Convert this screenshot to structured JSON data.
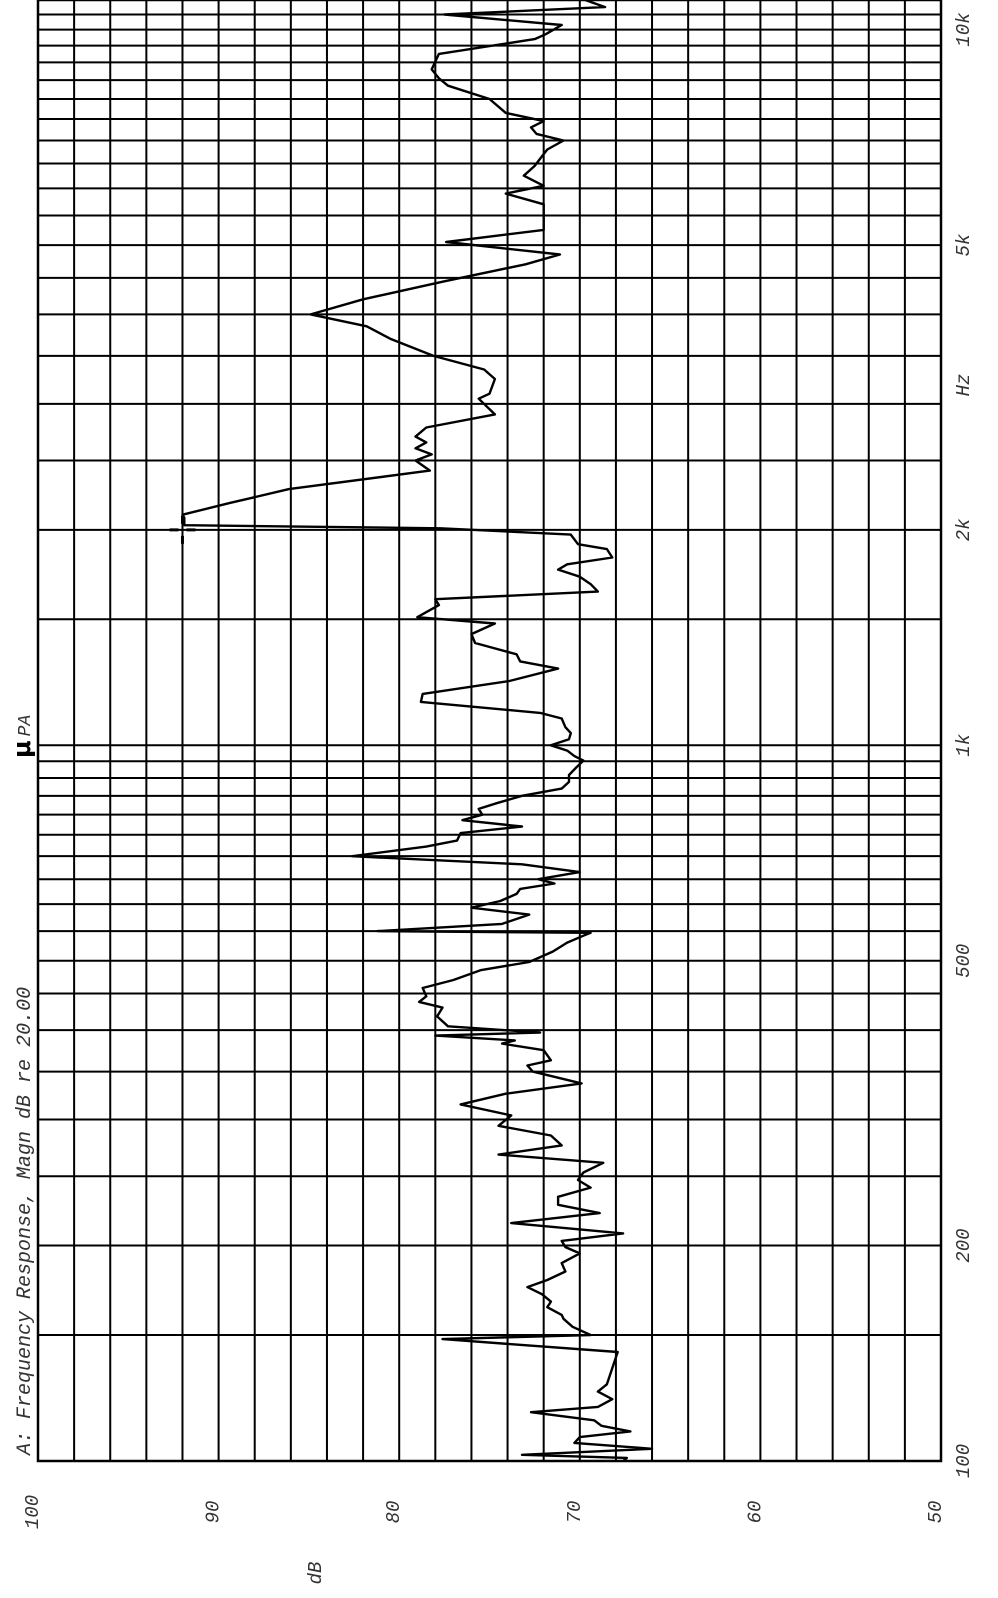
{
  "chart_data": {
    "type": "line",
    "title": "A: Frequency Response, Magn dB re 20.00",
    "title_unit_symbol": "μ",
    "title_unit_suffix": "PA",
    "xlabel": "Hz",
    "ylabel": "dB",
    "x_scale": "log",
    "xlim": [
      100,
      11000
    ],
    "ylim": [
      50,
      100
    ],
    "x_tick_labels": [
      {
        "value": 100,
        "label": "100"
      },
      {
        "value": 200,
        "label": "200"
      },
      {
        "value": 500,
        "label": "500"
      },
      {
        "value": 1000,
        "label": "1k"
      },
      {
        "value": 2000,
        "label": "2k"
      },
      {
        "value": 5000,
        "label": "5k"
      },
      {
        "value": 10000,
        "label": "10k"
      }
    ],
    "y_tick_labels": [
      {
        "value": 100,
        "label": "100"
      },
      {
        "value": 90,
        "label": "90"
      },
      {
        "value": 80,
        "label": "80"
      },
      {
        "value": 70,
        "label": "70"
      },
      {
        "value": 60,
        "label": "60"
      },
      {
        "value": 50,
        "label": "50"
      }
    ],
    "x_gridlines": [
      100,
      150,
      200,
      250,
      300,
      350,
      400,
      450,
      500,
      550,
      600,
      650,
      700,
      750,
      800,
      850,
      900,
      950,
      1000,
      1500,
      2000,
      2500,
      3000,
      3500,
      4000,
      4500,
      5000,
      5500,
      6000,
      6500,
      7000,
      7500,
      8000,
      8500,
      9000,
      9500,
      10000,
      10500,
      11000
    ],
    "y_gridlines": [
      50,
      52,
      54,
      56,
      58,
      60,
      62,
      64,
      66,
      68,
      70,
      72,
      74,
      76,
      78,
      80,
      82,
      84,
      86,
      88,
      90,
      92,
      94,
      96,
      98,
      100
    ],
    "grid": true,
    "marker": {
      "x": 2000,
      "y": 92
    },
    "series": [
      {
        "points": [
          [
            100,
            67.6
          ],
          [
            101,
            67.4
          ],
          [
            102,
            73.2
          ],
          [
            104,
            66.0
          ],
          [
            106,
            70.3
          ],
          [
            108,
            70.0
          ],
          [
            110,
            67.2
          ],
          [
            112,
            68.8
          ],
          [
            114,
            69.2
          ],
          [
            117,
            72.7
          ],
          [
            119,
            69.0
          ],
          [
            122,
            68.2
          ],
          [
            125,
            69.0
          ],
          [
            128,
            68.5
          ],
          [
            142,
            67.9
          ],
          [
            148,
            77.6
          ],
          [
            150,
            69.4
          ],
          [
            154,
            70.4
          ],
          [
            158,
            70.9
          ],
          [
            160,
            71.0
          ],
          [
            164,
            71.8
          ],
          [
            167,
            71.6
          ],
          [
            171,
            72.1
          ],
          [
            175,
            72.9
          ],
          [
            179,
            71.8
          ],
          [
            184,
            70.8
          ],
          [
            189,
            71.0
          ],
          [
            195,
            70.0
          ],
          [
            199,
            70.8
          ],
          [
            203,
            71.0
          ],
          [
            208,
            67.6
          ],
          [
            215,
            73.8
          ],
          [
            222,
            68.9
          ],
          [
            228,
            71.2
          ],
          [
            234,
            71.2
          ],
          [
            241,
            69.4
          ],
          [
            247,
            70.1
          ],
          [
            253,
            69.8
          ],
          [
            261,
            68.7
          ],
          [
            268,
            74.5
          ],
          [
            276,
            71.0
          ],
          [
            285,
            71.6
          ],
          [
            294,
            74.5
          ],
          [
            304,
            73.8
          ],
          [
            315,
            76.6
          ],
          [
            326,
            74.1
          ],
          [
            337,
            69.9
          ],
          [
            350,
            72.6
          ],
          [
            357,
            72.9
          ],
          [
            363,
            71.6
          ],
          [
            375,
            72.0
          ],
          [
            383,
            74.3
          ],
          [
            387,
            73.6
          ],
          [
            393,
            78.0
          ],
          [
            397,
            72.2
          ],
          [
            405,
            77.3
          ],
          [
            418,
            77.9
          ],
          [
            430,
            77.6
          ],
          [
            438,
            78.9
          ],
          [
            446,
            78.5
          ],
          [
            458,
            78.7
          ],
          [
            470,
            77.0
          ],
          [
            485,
            75.5
          ],
          [
            498,
            72.8
          ],
          [
            515,
            71.5
          ],
          [
            530,
            70.7
          ],
          [
            542,
            69.8
          ],
          [
            547,
            69.4
          ],
          [
            550,
            81.2
          ],
          [
            563,
            74.3
          ],
          [
            580,
            72.8
          ],
          [
            593,
            76.0
          ],
          [
            606,
            74.4
          ],
          [
            620,
            73.5
          ],
          [
            630,
            73.3
          ],
          [
            641,
            71.4
          ],
          [
            650,
            72.3
          ],
          [
            665,
            70.0
          ],
          [
            682,
            73.2
          ],
          [
            700,
            82.6
          ],
          [
            722,
            78.5
          ],
          [
            736,
            76.8
          ],
          [
            754,
            76.6
          ],
          [
            770,
            73.2
          ],
          [
            786,
            76.5
          ],
          [
            800,
            75.4
          ],
          [
            815,
            75.6
          ],
          [
            830,
            74.6
          ],
          [
            850,
            73.2
          ],
          [
            870,
            71.0
          ],
          [
            889,
            70.6
          ],
          [
            909,
            70.6
          ],
          [
            931,
            70.2
          ],
          [
            952,
            69.8
          ],
          [
            966,
            70.3
          ],
          [
            983,
            70.7
          ],
          [
            1000,
            71.6
          ],
          [
            1020,
            70.6
          ],
          [
            1040,
            70.5
          ],
          [
            1060,
            70.8
          ],
          [
            1090,
            71.0
          ],
          [
            1110,
            72.2
          ],
          [
            1150,
            78.8
          ],
          [
            1180,
            78.7
          ],
          [
            1230,
            73.9
          ],
          [
            1280,
            71.2
          ],
          [
            1310,
            73.3
          ],
          [
            1340,
            73.5
          ],
          [
            1390,
            75.8
          ],
          [
            1430,
            76.0
          ],
          [
            1480,
            74.7
          ],
          [
            1510,
            79.0
          ],
          [
            1570,
            77.8
          ],
          [
            1600,
            78.0
          ],
          [
            1640,
            69.0
          ],
          [
            1680,
            69.4
          ],
          [
            1720,
            70.0
          ],
          [
            1760,
            71.2
          ],
          [
            1790,
            70.7
          ],
          [
            1830,
            68.2
          ],
          [
            1880,
            68.5
          ],
          [
            1910,
            70.1
          ],
          [
            1970,
            70.5
          ],
          [
            2010,
            77.7
          ],
          [
            2030,
            91.9
          ],
          [
            2080,
            91.9
          ],
          [
            2100,
            92.0
          ],
          [
            2180,
            89.4
          ],
          [
            2280,
            86.1
          ],
          [
            2420,
            78.3
          ],
          [
            2500,
            79.1
          ],
          [
            2550,
            78.2
          ],
          [
            2600,
            79.1
          ],
          [
            2650,
            78.5
          ],
          [
            2700,
            79.1
          ],
          [
            2780,
            78.5
          ],
          [
            2900,
            74.7
          ],
          [
            3050,
            75.6
          ],
          [
            3100,
            75.0
          ],
          [
            3250,
            74.7
          ],
          [
            3350,
            75.3
          ],
          [
            3500,
            78.1
          ],
          [
            3700,
            80.5
          ],
          [
            3850,
            81.8
          ],
          [
            4000,
            84.9
          ],
          [
            4200,
            82.0
          ],
          [
            4450,
            77.5
          ],
          [
            4700,
            73.0
          ],
          [
            4850,
            71.1
          ],
          [
            5050,
            77.4
          ],
          [
            5250,
            72.0
          ],
          [
            5500,
            72.0
          ],
          [
            5700,
            72.0
          ],
          [
            5900,
            74.1
          ],
          [
            6050,
            72.0
          ],
          [
            6250,
            73.1
          ],
          [
            6450,
            72.5
          ],
          [
            6650,
            72.1
          ],
          [
            6800,
            71.8
          ],
          [
            7000,
            70.9
          ],
          [
            7150,
            72.4
          ],
          [
            7300,
            72.7
          ],
          [
            7450,
            72.0
          ],
          [
            7650,
            74.1
          ],
          [
            8000,
            75.0
          ],
          [
            8350,
            77.3
          ],
          [
            8550,
            77.8
          ],
          [
            8800,
            78.2
          ],
          [
            9250,
            77.8
          ],
          [
            9700,
            72.5
          ],
          [
            9850,
            71.9
          ],
          [
            10150,
            71.0
          ],
          [
            10500,
            77.5
          ],
          [
            10750,
            68.6
          ],
          [
            11000,
            69.7
          ],
          [
            11150,
            68.9
          ],
          [
            11300,
            67.6
          ],
          [
            11400,
            66.4
          ]
        ]
      }
    ]
  }
}
